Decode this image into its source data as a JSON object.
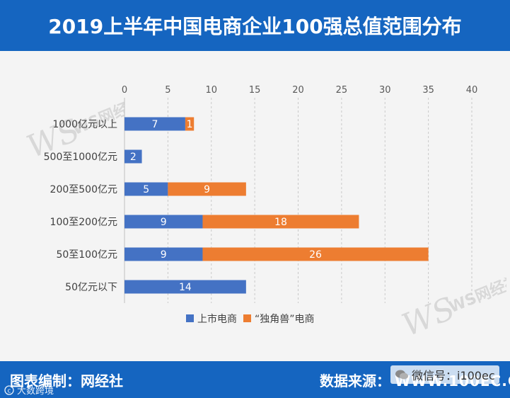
{
  "header": {
    "title": "2019上半年中国电商企业100强总值范围分布"
  },
  "chart_data": {
    "type": "bar",
    "orientation": "horizontal",
    "stacked": true,
    "categories": [
      "1000亿元以上",
      "500至1000亿元",
      "200至500亿元",
      "100至200亿元",
      "50至100亿元",
      "50亿元以下"
    ],
    "series": [
      {
        "name": "上市电商",
        "color": "#4472C4",
        "values": [
          7,
          2,
          5,
          9,
          9,
          14
        ]
      },
      {
        "name": "“独角兽”电商",
        "color": "#ED7D31",
        "values": [
          1,
          0,
          9,
          18,
          26,
          0
        ]
      }
    ],
    "xlim": [
      0,
      40
    ],
    "xticks": [
      0,
      5,
      10,
      15,
      20,
      25,
      30,
      35,
      40
    ],
    "axis_position": "top",
    "gridlines": "vertical-dashed",
    "legend": "bottom-center",
    "title": ""
  },
  "footer": {
    "compiler": "图表编制：网经社",
    "source_label": "数据来源：",
    "source_url": "WWW.100EC.CN",
    "wechat": "微信号：i100ec",
    "credit": "大数跨境"
  },
  "watermark": {
    "logo": "WS网经社",
    "url": "WWW.100EC.CN",
    "tagline": "网络经济服务平台"
  }
}
